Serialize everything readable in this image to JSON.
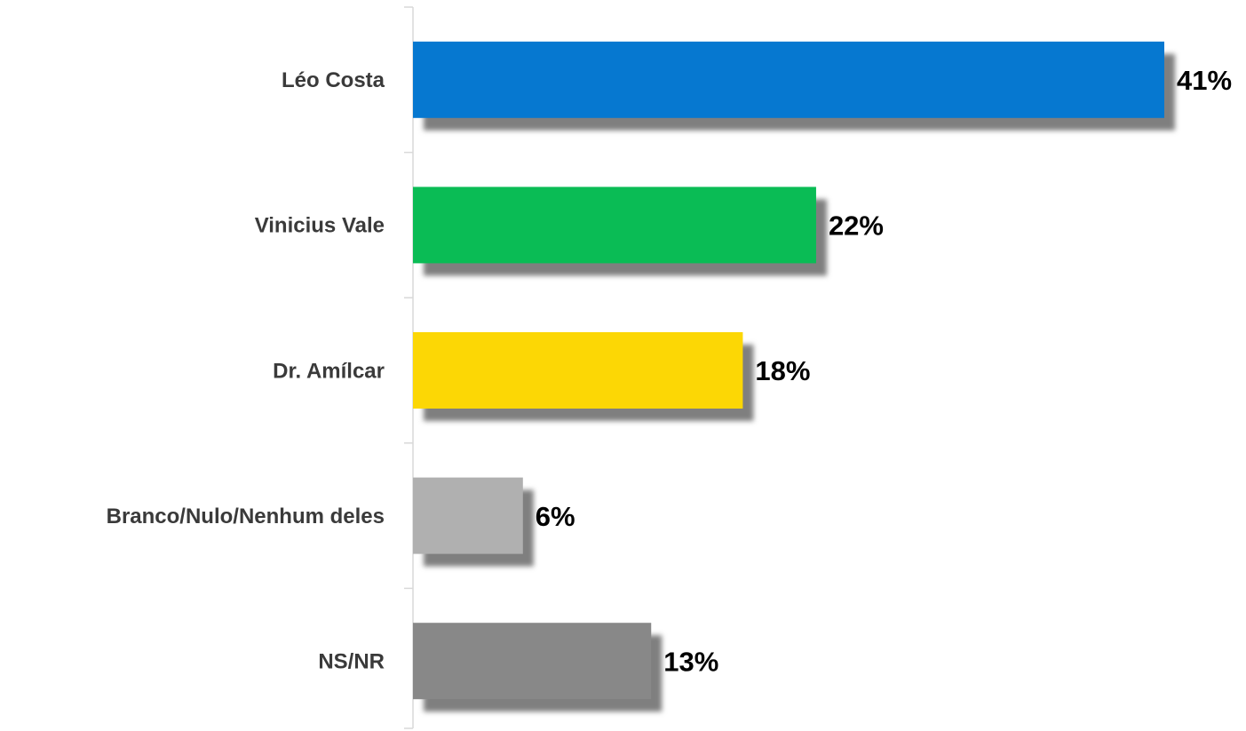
{
  "chart_data": {
    "type": "barh",
    "categories": [
      "Léo Costa",
      "Vinicius Vale",
      "Dr. Amílcar",
      "Branco/Nulo/Nenhum deles",
      "NS/NR"
    ],
    "values": [
      41,
      22,
      18,
      6,
      13
    ],
    "value_labels": [
      "41%",
      "22%",
      "18%",
      "6%",
      "13%"
    ],
    "colors": [
      "#0678d0",
      "#0abc55",
      "#fcd705",
      "#b0b0b0",
      "#888888"
    ]
  }
}
